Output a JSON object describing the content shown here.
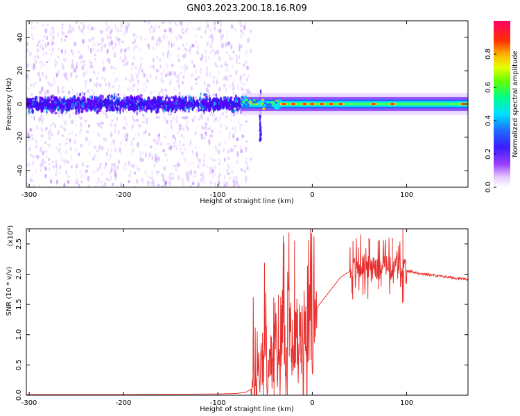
{
  "title": "GN03.2023.200.18.16.R09",
  "chart_data": [
    {
      "type": "heatmap",
      "xlabel": "Height of straight line (km)",
      "ylabel": "Frequency (Hz)",
      "xlim": [
        -303,
        165
      ],
      "ylim": [
        -50,
        50
      ],
      "xticks": [
        -300,
        -200,
        -100,
        0,
        100
      ],
      "yticks": [
        40,
        20,
        0,
        -20,
        -40
      ],
      "colorbar": {
        "label": "Normalized spectral amplitude",
        "range": [
          0.0,
          1.0
        ],
        "ticks": [
          "0.0",
          "0.2",
          "0.4",
          "0.6",
          "0.8"
        ],
        "colormap": [
          "#ffffff",
          "#d9b3ff",
          "#7f00ff",
          "#1f3dff",
          "#00e5ff",
          "#00ff66",
          "#b6ff00",
          "#ffd400",
          "#ff7a00",
          "#ff0000",
          "#ff0066"
        ]
      },
      "features": {
        "scatter_region_km": [
          -303,
          -75
        ],
        "scatter_spread_hz": 50,
        "core_band_hz": [
          -10,
          10
        ],
        "narrow_line_region_km": [
          -75,
          165
        ],
        "narrow_line_center_hz": 0,
        "narrow_line_halfwidth_hz": 3,
        "peak_color_spots_km": [
          -30,
          -20,
          -8,
          0,
          10,
          20,
          30,
          65,
          85,
          160
        ]
      }
    },
    {
      "type": "line",
      "xlabel": "Height of straight line (km)",
      "ylabel": "SNR (10 * v/v)",
      "yscale_label": "(x10⁴)",
      "xlim": [
        -303,
        165
      ],
      "ylim": [
        0,
        2.75
      ],
      "xticks": [
        -300,
        -200,
        -100,
        0,
        100
      ],
      "yticks": [
        "0.0",
        "0.5",
        "1.0",
        "1.5",
        "2.0",
        "2.5"
      ],
      "series": [
        {
          "color": "#e8302e",
          "x": [
            -303,
            -250,
            -200,
            -150,
            -100,
            -80,
            -70,
            -60,
            -55,
            -50,
            -45,
            -40,
            -35,
            -30,
            -28,
            -25,
            -22,
            -20,
            -15,
            -10,
            -5,
            0,
            5,
            10,
            15,
            20,
            25,
            30,
            35,
            40,
            45,
            50,
            55,
            60,
            65,
            70,
            75,
            80,
            85,
            90,
            95,
            98,
            100,
            105,
            110,
            120,
            130,
            140,
            150,
            160,
            165
          ],
          "values": [
            0.01,
            0.01,
            0.01,
            0.015,
            0.02,
            0.03,
            0.05,
            0.15,
            0.6,
            0.8,
            0.3,
            0.9,
            0.5,
            1.7,
            0.4,
            2.3,
            0.6,
            1.0,
            0.9,
            1.2,
            1.2,
            1.4,
            1.45,
            1.55,
            1.65,
            1.75,
            1.85,
            1.95,
            2.0,
            2.05,
            2.1,
            2.12,
            2.15,
            2.1,
            2.2,
            2.05,
            2.25,
            2.1,
            2.0,
            2.25,
            1.95,
            2.1,
            2.05,
            2.05,
            2.02,
            2.0,
            1.98,
            1.96,
            1.94,
            1.92,
            1.91
          ],
          "noise_regions": [
            {
              "from": -65,
              "to": 5,
              "amplitude": 1.6
            },
            {
              "from": 40,
              "to": 100,
              "amplitude": 0.55
            }
          ],
          "spikes": [
            {
              "x": 60,
              "y": 2.6
            },
            {
              "x": 85,
              "y": 2.6
            },
            {
              "x": 96,
              "y": 2.75
            },
            {
              "x": 97,
              "y": 1.55
            },
            {
              "x": 70,
              "y": 1.75
            }
          ]
        }
      ]
    }
  ]
}
